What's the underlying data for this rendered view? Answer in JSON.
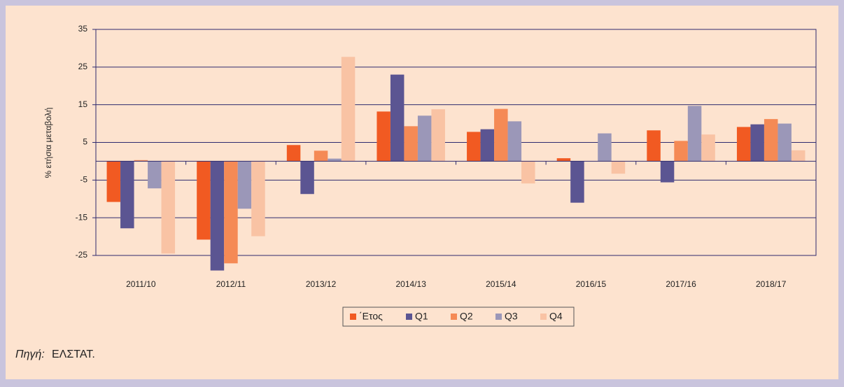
{
  "chart_data": {
    "type": "bar",
    "y_label": "% ετήσια μεταβολή",
    "categories": [
      "2011/10",
      "2012/11",
      "2013/12",
      "2014/13",
      "2015/14",
      "2016/15",
      "2017/16",
      "2018/17"
    ],
    "series": [
      {
        "name": "΄Ετος",
        "color": "#f15a22",
        "values": [
          -10.8,
          -20.8,
          4.3,
          13.2,
          7.8,
          0.8,
          8.2,
          9.1
        ]
      },
      {
        "name": "Q1",
        "color": "#5b5592",
        "values": [
          -17.8,
          -29,
          -8.7,
          23,
          8.5,
          -11,
          -5.6,
          9.8
        ]
      },
      {
        "name": "Q2",
        "color": "#f58a55",
        "values": [
          0.3,
          -27.1,
          2.8,
          9.3,
          13.9,
          null,
          5.4,
          11.2
        ]
      },
      {
        "name": "Q3",
        "color": "#9b97b8",
        "values": [
          -7.2,
          -12.6,
          0.7,
          12.1,
          10.6,
          7.4,
          14.7,
          10
        ]
      },
      {
        "name": "Q4",
        "color": "#f9c3a4",
        "values": [
          -24.5,
          -19.9,
          27.7,
          13.8,
          -5.9,
          -3.3,
          7.1,
          2.9
        ]
      }
    ],
    "ylim": [
      -25,
      35
    ],
    "yticks": [
      -25,
      -15,
      -5,
      5,
      15,
      25,
      35
    ],
    "grid": true,
    "source_label": "Πηγή:",
    "source": "ΕΛΣΤΑΤ."
  }
}
